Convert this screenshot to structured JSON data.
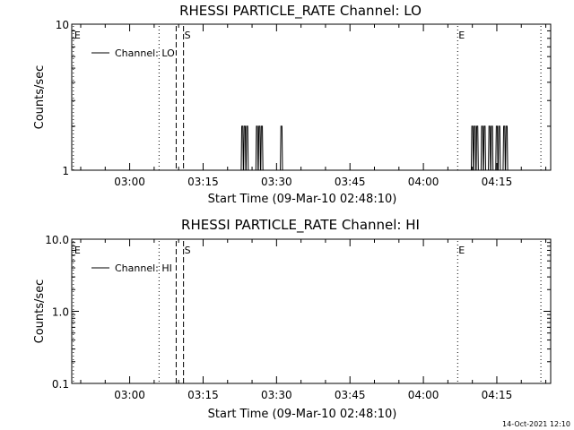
{
  "footer_timestamp": "14-Oct-2021 12:10",
  "chart_data": [
    {
      "type": "line",
      "title": "RHESSI PARTICLE_RATE Channel: LO",
      "xlabel": "Start Time (09-Mar-10 02:48:10)",
      "ylabel": "Counts/sec",
      "yscale": "log",
      "xlim": [
        "02:48:10",
        "04:26:00"
      ],
      "ylim": [
        1,
        10
      ],
      "x_ticks": [
        "03:00",
        "03:15",
        "03:30",
        "03:45",
        "04:00",
        "04:15"
      ],
      "y_ticks": [
        {
          "value": 1,
          "label": "1"
        },
        {
          "value": 10,
          "label": "10"
        }
      ],
      "legend": {
        "position": "top-left",
        "entries": [
          "Channel: LO"
        ]
      },
      "grid": false,
      "series": [
        {
          "name": "Channel: LO",
          "spikes": [
            {
              "x": "03:23:00",
              "y": 2
            },
            {
              "x": "03:23:30",
              "y": 2
            },
            {
              "x": "03:24:00",
              "y": 2
            },
            {
              "x": "03:26:00",
              "y": 2
            },
            {
              "x": "03:26:30",
              "y": 2
            },
            {
              "x": "03:27:00",
              "y": 2
            },
            {
              "x": "03:31:00",
              "y": 2
            },
            {
              "x": "04:10:00",
              "y": 2
            },
            {
              "x": "04:10:30",
              "y": 2
            },
            {
              "x": "04:11:00",
              "y": 2
            },
            {
              "x": "04:12:00",
              "y": 2
            },
            {
              "x": "04:12:30",
              "y": 2
            },
            {
              "x": "04:13:30",
              "y": 2
            },
            {
              "x": "04:14:00",
              "y": 2
            },
            {
              "x": "04:15:00",
              "y": 2
            },
            {
              "x": "04:15:30",
              "y": 2
            },
            {
              "x": "04:16:30",
              "y": 2
            },
            {
              "x": "04:17:00",
              "y": 2
            }
          ]
        }
      ],
      "vertical_markers": [
        {
          "x": "02:48:30",
          "style": "dotted",
          "label": "E"
        },
        {
          "x": "03:06:00",
          "style": "dotted",
          "label": ""
        },
        {
          "x": "03:09:30",
          "style": "dashed",
          "label": ""
        },
        {
          "x": "03:11:00",
          "style": "dashed",
          "label": "S"
        },
        {
          "x": "04:07:00",
          "style": "dotted",
          "label": "E"
        },
        {
          "x": "04:24:00",
          "style": "dotted",
          "label": ""
        }
      ]
    },
    {
      "type": "line",
      "title": "RHESSI PARTICLE_RATE Channel: HI",
      "xlabel": "Start Time (09-Mar-10 02:48:10)",
      "ylabel": "Counts/sec",
      "yscale": "log",
      "xlim": [
        "02:48:10",
        "04:26:00"
      ],
      "ylim": [
        0.1,
        10
      ],
      "x_ticks": [
        "03:00",
        "03:15",
        "03:30",
        "03:45",
        "04:00",
        "04:15"
      ],
      "y_ticks": [
        {
          "value": 0.1,
          "label": "0.1"
        },
        {
          "value": 1,
          "label": "1.0"
        },
        {
          "value": 10,
          "label": "10.0"
        }
      ],
      "legend": {
        "position": "top-left",
        "entries": [
          "Channel: HI"
        ]
      },
      "grid": false,
      "series": [
        {
          "name": "Channel: HI",
          "spikes": []
        }
      ],
      "vertical_markers": [
        {
          "x": "02:48:30",
          "style": "dotted",
          "label": "E"
        },
        {
          "x": "03:06:00",
          "style": "dotted",
          "label": ""
        },
        {
          "x": "03:09:30",
          "style": "dashed",
          "label": ""
        },
        {
          "x": "03:11:00",
          "style": "dashed",
          "label": "S"
        },
        {
          "x": "04:07:00",
          "style": "dotted",
          "label": "E"
        },
        {
          "x": "04:24:00",
          "style": "dotted",
          "label": ""
        }
      ]
    }
  ]
}
